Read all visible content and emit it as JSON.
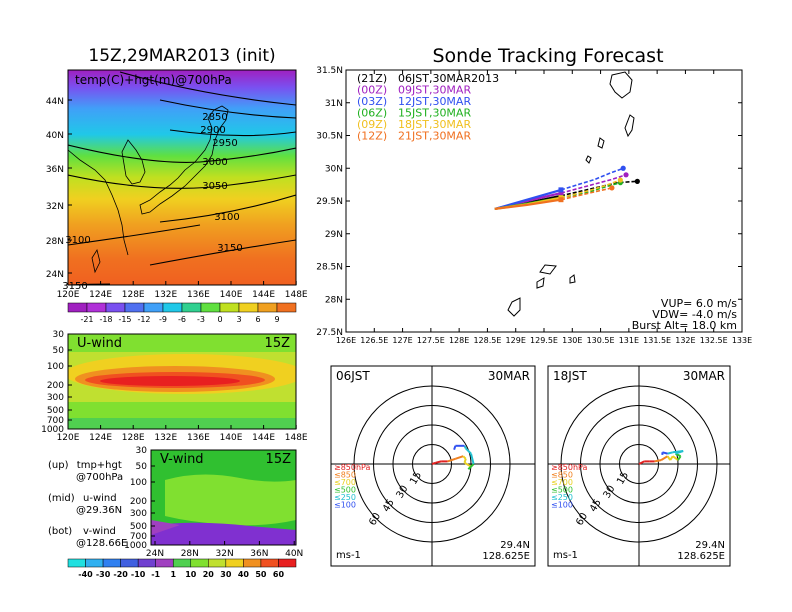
{
  "main_title": "Sonde Tracking Forecast",
  "left_title": "15Z,29MAR2013 (init)",
  "panel_a": {
    "label": "temp(C)+hgt(m)@700hPa",
    "lat_ticks": [
      "44N",
      "40N",
      "36N",
      "32N",
      "28N",
      "24N"
    ],
    "lon_ticks": [
      "120E",
      "124E",
      "128E",
      "132E",
      "136E",
      "140E",
      "144E",
      "148E"
    ],
    "contours": [
      {
        "label": "2850"
      },
      {
        "label": "2900"
      },
      {
        "label": "2950"
      },
      {
        "label": "3000"
      },
      {
        "label": "3050"
      },
      {
        "label": "3100"
      },
      {
        "label": "3100"
      },
      {
        "label": "3150"
      },
      {
        "label": "3150"
      }
    ],
    "colorbar_labels": [
      "-21",
      "-18",
      "-15",
      "-12",
      "-9",
      "-6",
      "-3",
      "0",
      "3",
      "6",
      "9"
    ],
    "colorbar_colors": [
      "#a020c0",
      "#b030d8",
      "#7a50f0",
      "#5070f0",
      "#40a0f8",
      "#20c8e8",
      "#30d090",
      "#60e040",
      "#c0e020",
      "#f0d020",
      "#f0a020",
      "#f07020"
    ]
  },
  "panel_b": {
    "label": "U-wind",
    "time": "15Z",
    "p_ticks": [
      "30",
      "50",
      "100",
      "200",
      "300",
      "500",
      "700",
      "1000"
    ],
    "lon_ticks": [
      "120E",
      "124E",
      "128E",
      "132E",
      "136E",
      "140E",
      "144E",
      "148E"
    ]
  },
  "panel_c": {
    "label": "V-wind",
    "time": "15Z",
    "p_ticks": [
      "30",
      "50",
      "100",
      "200",
      "300",
      "500",
      "700",
      "1000"
    ],
    "lat_ticks": [
      "24N",
      "28N",
      "32N",
      "36N",
      "40N"
    ],
    "colorbar_labels": [
      "-40",
      "-30",
      "-20",
      "-10",
      "-1",
      "1",
      "10",
      "20",
      "30",
      "40",
      "50",
      "60"
    ],
    "colorbar_colors": [
      "#20e0e0",
      "#30b0f0",
      "#3080f0",
      "#4060e0",
      "#7040d0",
      "#a040c0",
      "#50d050",
      "#80e030",
      "#c0e030",
      "#f0d020",
      "#f09020",
      "#f05020",
      "#e82020"
    ]
  },
  "legend_notes": [
    {
      "key": "(up)",
      "line1": "tmp+hgt",
      "line2": "@700hPa"
    },
    {
      "key": "(mid)",
      "line1": "u-wind",
      "line2": "@29.36N"
    },
    {
      "key": "(bot)",
      "line1": "v-wind",
      "line2": "@128.66E"
    }
  ],
  "track_map": {
    "lat_ticks": [
      "31.5N",
      "31N",
      "30.5N",
      "30N",
      "29.5N",
      "29N",
      "28.5N",
      "28N",
      "27.5N"
    ],
    "lon_ticks": [
      "126E",
      "126.5E",
      "127E",
      "127.5E",
      "128E",
      "128.5E",
      "129E",
      "129.5E",
      "130E",
      "130.5E",
      "131E",
      "131.5E",
      "132E",
      "132.5E",
      "133E"
    ],
    "forecasts": [
      {
        "utc": "(21Z)",
        "jst": "06JST,30MAR2013",
        "color": "#000000"
      },
      {
        "utc": "(00Z)",
        "jst": "09JST,30MAR",
        "color": "#a020c0"
      },
      {
        "utc": "(03Z)",
        "jst": "12JST,30MAR",
        "color": "#3050f0"
      },
      {
        "utc": "(06Z)",
        "jst": "15JST,30MAR",
        "color": "#20b020"
      },
      {
        "utc": "(09Z)",
        "jst": "18JST,30MAR",
        "color": "#f0c020"
      },
      {
        "utc": "(12Z)",
        "jst": "21JST,30MAR",
        "color": "#f07020"
      }
    ],
    "vup": "VUP= 6.0 m/s",
    "vdw": "VDW= -4.0 m/s",
    "burst": "Burst Alt= 18.0 km"
  },
  "hodo_left": {
    "time": "06JST",
    "date": "30MAR",
    "ring_labels": [
      "15",
      "30",
      "45",
      "60"
    ],
    "unit": "ms-1",
    "lat": "29.4N",
    "lon": "128.625E",
    "levels": [
      {
        "label": "≥850hPa",
        "color": "#e02020"
      },
      {
        "label": "≤850",
        "color": "#f08020"
      },
      {
        "label": "≤700",
        "color": "#e8d020"
      },
      {
        "label": "≤500",
        "color": "#30c030"
      },
      {
        "label": "≤250",
        "color": "#20c0d0"
      },
      {
        "label": "≤100",
        "color": "#3050f0"
      }
    ]
  },
  "hodo_right": {
    "time": "18JST",
    "date": "30MAR",
    "ring_labels": [
      "15",
      "30",
      "45",
      "60"
    ],
    "unit": "ms-1",
    "lat": "29.4N",
    "lon": "128.625E",
    "levels": [
      {
        "label": "≥850hPa",
        "color": "#e02020"
      },
      {
        "label": "≤850",
        "color": "#f08020"
      },
      {
        "label": "≤700",
        "color": "#e8d020"
      },
      {
        "label": "≤500",
        "color": "#30c030"
      },
      {
        "label": "≤250",
        "color": "#20c0d0"
      },
      {
        "label": "≤100",
        "color": "#3050f0"
      }
    ]
  },
  "chart_data": {
    "type": "scatter",
    "title": "Sonde Tracking Forecast",
    "xlabel": "",
    "ylabel": "",
    "xlim": [
      126,
      133
    ],
    "ylim": [
      27.5,
      31.5
    ],
    "launch_point": {
      "lon": 128.63,
      "lat": 29.38
    },
    "series": [
      {
        "name": "(21Z) 06JST,30MAR2013",
        "color": "#000000",
        "x": [
          128.63,
          129.2,
          129.8,
          130.4,
          130.8,
          131.15
        ],
        "y": [
          29.38,
          29.47,
          29.58,
          29.7,
          29.78,
          29.8
        ]
      },
      {
        "name": "(00Z) 09JST,30MAR",
        "color": "#a020c0",
        "x": [
          128.63,
          129.2,
          129.8,
          130.4,
          130.7,
          130.95
        ],
        "y": [
          29.38,
          29.5,
          29.62,
          29.76,
          29.83,
          29.9
        ]
      },
      {
        "name": "(03Z) 12JST,30MAR",
        "color": "#3050f0",
        "x": [
          128.63,
          129.2,
          129.8,
          130.4,
          130.65,
          130.9
        ],
        "y": [
          29.38,
          29.52,
          29.67,
          29.83,
          29.92,
          30.0
        ]
      },
      {
        "name": "(06Z) 15JST,30MAR",
        "color": "#20b020",
        "x": [
          128.63,
          129.2,
          129.8,
          130.3,
          130.6,
          130.85
        ],
        "y": [
          29.38,
          29.46,
          29.55,
          29.64,
          29.72,
          29.78
        ]
      },
      {
        "name": "(09Z) 18JST,30MAR",
        "color": "#f0c020",
        "x": [
          128.63,
          129.2,
          129.8,
          130.3,
          130.6,
          130.85
        ],
        "y": [
          29.38,
          29.45,
          29.55,
          29.66,
          29.74,
          29.82
        ]
      },
      {
        "name": "(12Z) 21JST,30MAR",
        "color": "#f07020",
        "x": [
          128.63,
          129.2,
          129.8,
          130.2,
          130.5,
          130.7
        ],
        "y": [
          29.38,
          29.44,
          29.52,
          29.6,
          29.66,
          29.7
        ]
      }
    ],
    "hodographs": [
      {
        "time": "06JST",
        "date": "30MAR",
        "ring_speeds": [
          15,
          30,
          45,
          60
        ],
        "u": [
          0,
          3,
          7,
          12,
          18,
          24,
          26,
          25,
          30,
          28,
          32,
          30,
          26,
          25,
          18,
          17
        ],
        "v": [
          0,
          1,
          2,
          2,
          4,
          6,
          4,
          1,
          -2,
          -4,
          0,
          8,
          12,
          14,
          14,
          11
        ]
      },
      {
        "time": "18JST",
        "date": "30MAR",
        "ring_speeds": [
          15,
          30,
          45,
          60
        ],
        "u": [
          0,
          4,
          8,
          12,
          17,
          22,
          24,
          26,
          30,
          32,
          28,
          34,
          26,
          22,
          18,
          18
        ],
        "v": [
          0,
          2,
          2,
          2,
          3,
          6,
          3,
          6,
          3,
          6,
          8,
          10,
          9,
          8,
          9,
          7
        ]
      }
    ]
  }
}
